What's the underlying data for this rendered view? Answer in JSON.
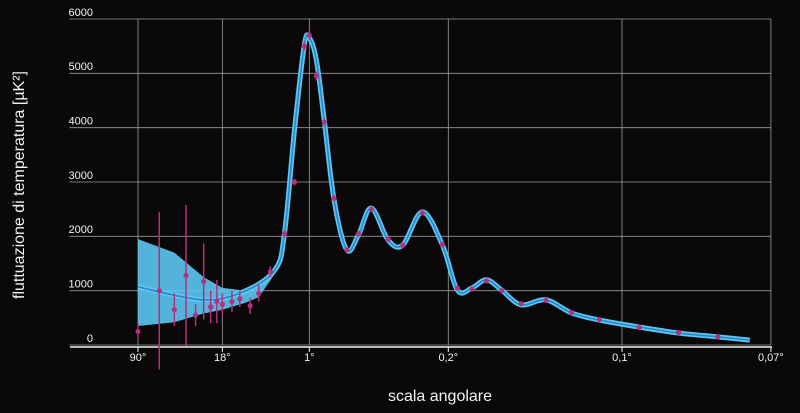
{
  "chart_data": {
    "type": "line",
    "xlabel": "scala angolare",
    "ylabel": "fluttuazione di temperatura  [µK²]",
    "xlim": [
      333,
      0.07
    ],
    "ylim": [
      0,
      6000
    ],
    "xticks": [
      {
        "value": 90,
        "label": "90°"
      },
      {
        "value": 18,
        "label": "18°"
      },
      {
        "value": 1,
        "label": "1°"
      },
      {
        "value": 0.2,
        "label": "0,2°"
      },
      {
        "value": 0.1,
        "label": "0,1°"
      },
      {
        "value": 0.07,
        "label": "0,07°"
      }
    ],
    "yticks": [
      0,
      1000,
      2000,
      3000,
      4000,
      5000,
      6000
    ],
    "grid": true,
    "band": {
      "color": "#5cc6f2",
      "x": [
        90,
        45,
        25.7,
        18,
        11.5,
        9,
        6.52
      ],
      "upper": [
        1950,
        1700,
        1250,
        1050,
        1000,
        1100,
        1420
      ],
      "lower": [
        350,
        420,
        580,
        650,
        780,
        880,
        1330
      ]
    },
    "series": [
      {
        "color": "#2a86c8",
        "x": [
          90,
          25.7,
          11.5,
          6.52,
          3.46,
          1.75,
          1.17,
          1,
          0.833,
          0.7,
          0.584,
          0.481,
          0.414,
          0.359,
          0.306,
          0.271,
          0.235,
          0.207,
          0.19,
          0.176,
          0.164,
          0.153,
          0.141,
          0.128,
          0.117,
          0.107,
          0.0953,
          0.086,
          0.0784,
          0.0731
        ],
        "values": [
          1070,
          830,
          1000,
          1400,
          2080,
          3950,
          5520,
          5650,
          5250,
          4140,
          2670,
          1750,
          2030,
          2520,
          1930,
          1840,
          2450,
          1840,
          1010,
          1050,
          1200,
          1010,
          740,
          830,
          590,
          460,
          330,
          220,
          150,
          90
        ]
      },
      {
        "color": "#b3307c",
        "x": [
          90,
          60,
          45,
          36,
          30,
          25.7,
          22.5,
          20,
          18,
          15,
          12.9,
          10.6,
          9,
          7.2,
          3.46,
          1.75,
          1.17,
          1,
          0.833,
          0.7,
          0.584,
          0.481,
          0.414,
          0.359,
          0.306,
          0.271,
          0.235,
          0.207,
          0.19,
          0.176,
          0.164,
          0.153,
          0.141,
          0.128,
          0.117,
          0.107,
          0.0953,
          0.086,
          0.0784
        ],
        "values": [
          250,
          1000,
          650,
          1280,
          550,
          1170,
          700,
          800,
          750,
          800,
          850,
          720,
          950,
          1350,
          2050,
          3000,
          5500,
          5700,
          4950,
          4100,
          2700,
          1750,
          2050,
          2500,
          1950,
          1830,
          2430,
          1850,
          1050,
          1030,
          1180,
          1000,
          760,
          820,
          600,
          470,
          320,
          230,
          150
        ],
        "errors": [
          150,
          1450,
          300,
          1300,
          200,
          700,
          300,
          400,
          200,
          200,
          150,
          150,
          150,
          100,
          60,
          60,
          80,
          80,
          80,
          70,
          60,
          50,
          50,
          50,
          50,
          50,
          50,
          50,
          40,
          40,
          40,
          40,
          40,
          40,
          30,
          30,
          30,
          30,
          30
        ]
      }
    ]
  }
}
